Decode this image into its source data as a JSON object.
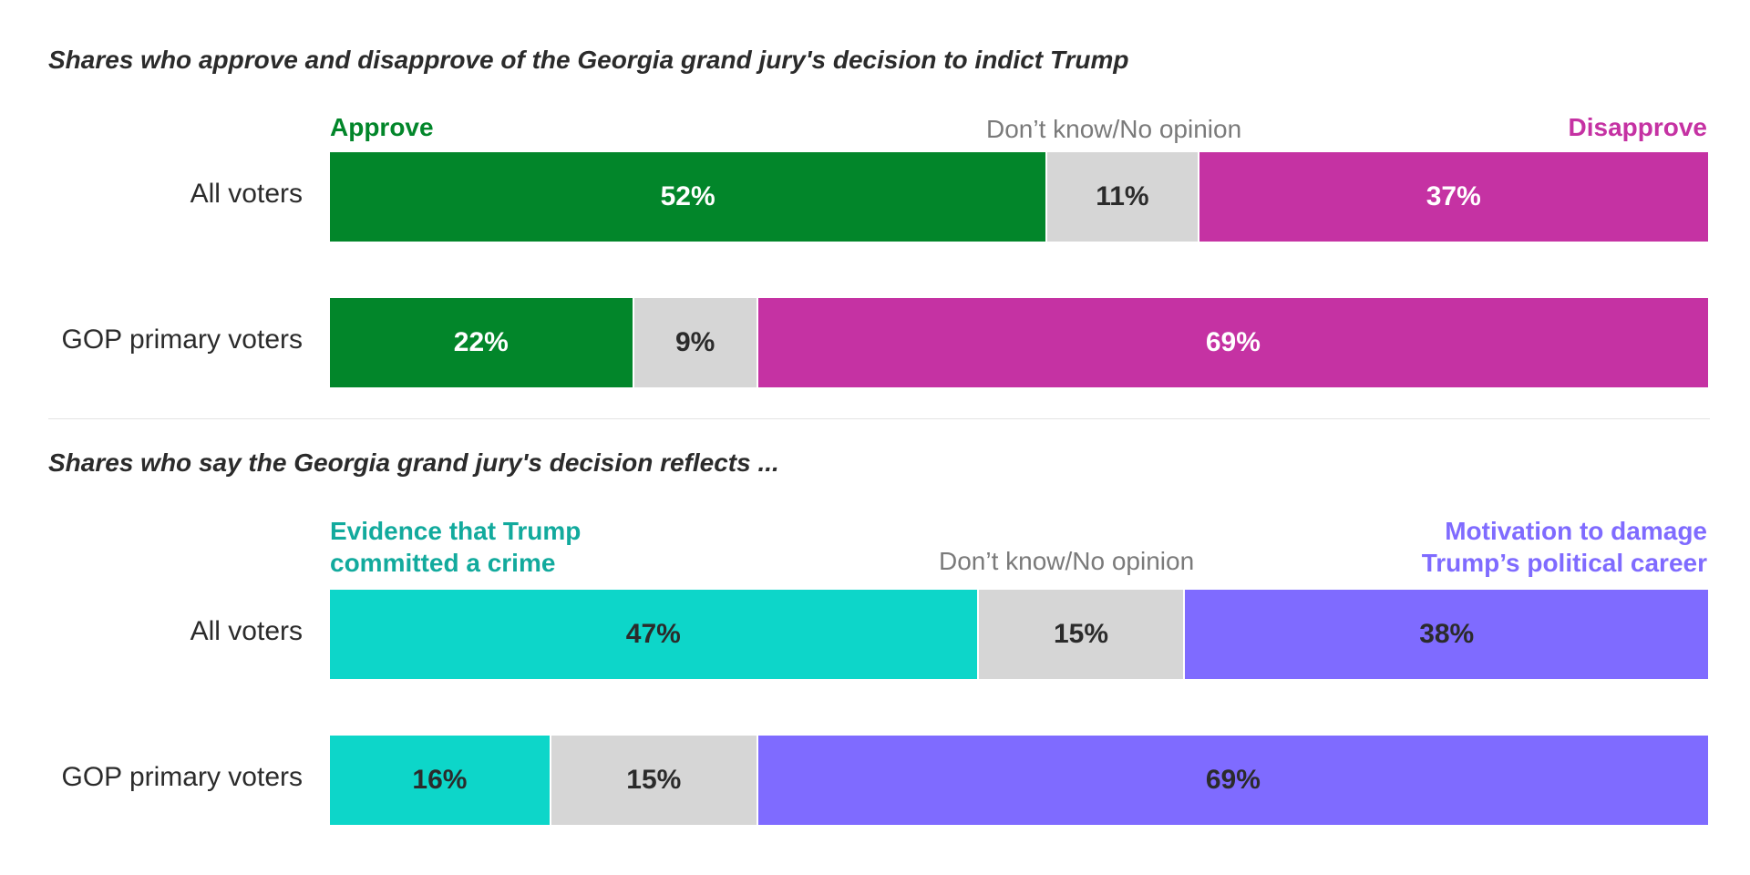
{
  "chart_data": [
    {
      "type": "bar",
      "orientation": "horizontal",
      "stacked": true,
      "normalized": true,
      "title": "Shares who approve and disapprove of the Georgia grand jury's decision to indict Trump",
      "categories": [
        "All voters",
        "GOP primary voters"
      ],
      "series": [
        {
          "name": "Approve",
          "values": [
            52,
            22
          ],
          "color": "#02862a",
          "label_color": "#ffffff"
        },
        {
          "name": "Don’t know/No opinion",
          "values": [
            11,
            9
          ],
          "color": "#d6d6d6",
          "label_color": "#2b2b2b"
        },
        {
          "name": "Disapprove",
          "values": [
            37,
            69
          ],
          "color": "#c532a3",
          "label_color": "#ffffff"
        }
      ],
      "value_suffix": "%",
      "legend_position": "top",
      "grid": false,
      "xlim": [
        0,
        100
      ]
    },
    {
      "type": "bar",
      "orientation": "horizontal",
      "stacked": true,
      "normalized": true,
      "title": "Shares who say the Georgia grand jury's decision reflects ...",
      "categories": [
        "All voters",
        "GOP primary voters"
      ],
      "series": [
        {
          "name": "Evidence that Trump committed a crime",
          "name_lines": [
            "Evidence that Trump",
            "committed a crime"
          ],
          "values": [
            47,
            16
          ],
          "color": "#0dd6c9",
          "legend_color": "#12aa9d",
          "label_color": "#2b2b2b"
        },
        {
          "name": "Don’t know/No opinion",
          "values": [
            15,
            15
          ],
          "color": "#d6d6d6",
          "label_color": "#2b2b2b"
        },
        {
          "name": "Motivation to damage Trump’s political career",
          "name_lines": [
            "Motivation to damage",
            "Trump’s political career"
          ],
          "values": [
            38,
            69
          ],
          "color": "#7f6bff",
          "label_color": "#2b2b2b"
        }
      ],
      "value_suffix": "%",
      "legend_position": "top",
      "grid": false,
      "xlim": [
        0,
        100
      ]
    }
  ]
}
